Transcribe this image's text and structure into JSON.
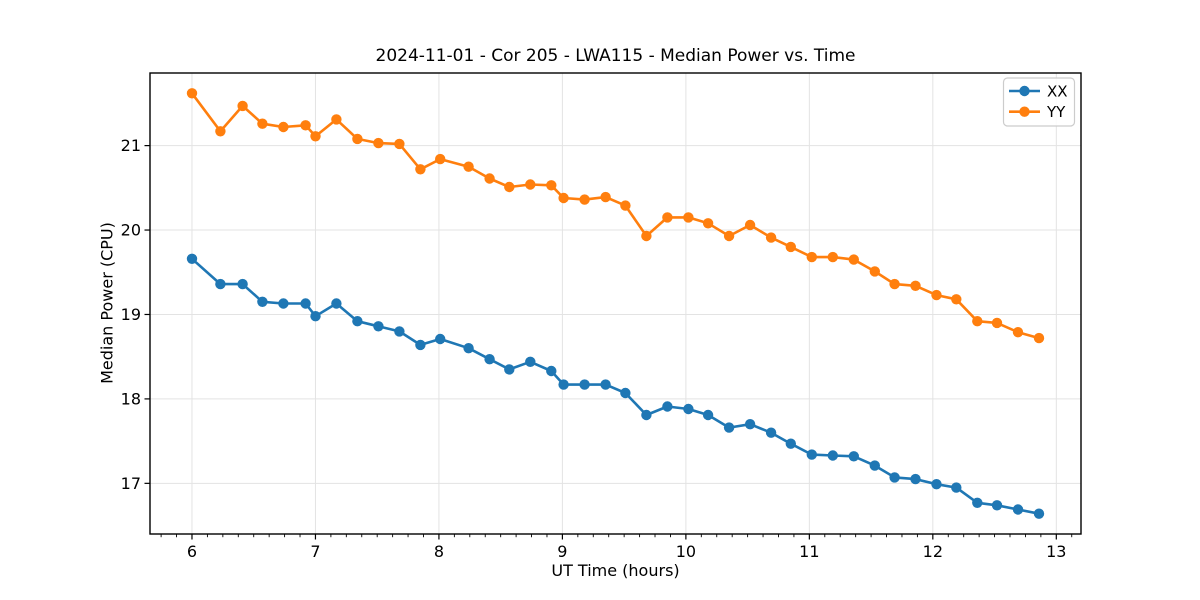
{
  "figure": {
    "title": "2024-11-01 - Cor 205 - LWA115 - Median Power vs. Time",
    "xlabel": "UT Time (hours)",
    "ylabel": "Median Power (CPU)"
  },
  "legend": {
    "position": "upper right",
    "entries": [
      {
        "label": "XX",
        "color": "#1f77b4"
      },
      {
        "label": "YY",
        "color": "#ff7f0e"
      }
    ]
  },
  "colors": {
    "series_xx": "#1f77b4",
    "series_yy": "#ff7f0e",
    "grid": "#e3e3e3",
    "spine": "#000000",
    "legend_border": "#cccccc"
  },
  "chart_data": {
    "type": "line",
    "title": "2024-11-01 - Cor 205 - LWA115 - Median Power vs. Time",
    "xlabel": "UT Time (hours)",
    "ylabel": "Median Power (CPU)",
    "xlim": [
      5.66,
      13.2
    ],
    "ylim": [
      16.4,
      21.86
    ],
    "x_ticks": [
      6,
      7,
      8,
      9,
      10,
      11,
      12,
      13
    ],
    "y_ticks": [
      17,
      18,
      19,
      20,
      21
    ],
    "x_minor_tick_step": 0.125,
    "grid": true,
    "legend_position": "upper right",
    "marker": "circle",
    "x": [
      6.0,
      6.23,
      6.41,
      6.57,
      6.74,
      6.92,
      7.0,
      7.17,
      7.34,
      7.51,
      7.68,
      7.85,
      8.01,
      8.24,
      8.41,
      8.57,
      8.74,
      8.91,
      9.01,
      9.18,
      9.35,
      9.51,
      9.68,
      9.85,
      10.02,
      10.18,
      10.35,
      10.52,
      10.69,
      10.85,
      11.02,
      11.19,
      11.36,
      11.53,
      11.69,
      11.86,
      12.03,
      12.19,
      12.36,
      12.52,
      12.69,
      12.86
    ],
    "series": [
      {
        "name": "XX",
        "color": "#1f77b4",
        "values": [
          19.66,
          19.36,
          19.36,
          19.15,
          19.13,
          19.13,
          18.98,
          19.13,
          18.92,
          18.86,
          18.8,
          18.64,
          18.71,
          18.6,
          18.47,
          18.35,
          18.44,
          18.33,
          18.17,
          18.17,
          18.17,
          18.07,
          17.81,
          17.91,
          17.88,
          17.81,
          17.66,
          17.7,
          17.6,
          17.47,
          17.34,
          17.33,
          17.32,
          17.21,
          17.07,
          17.05,
          16.99,
          16.95,
          16.77,
          16.74,
          16.69,
          16.64
        ]
      },
      {
        "name": "YY",
        "color": "#ff7f0e",
        "values": [
          21.62,
          21.17,
          21.47,
          21.26,
          21.22,
          21.24,
          21.11,
          21.31,
          21.08,
          21.03,
          21.02,
          20.72,
          20.84,
          20.75,
          20.61,
          20.51,
          20.54,
          20.53,
          20.38,
          20.36,
          20.39,
          20.29,
          19.93,
          20.15,
          20.15,
          20.08,
          19.93,
          20.06,
          19.91,
          19.8,
          19.68,
          19.68,
          19.65,
          19.51,
          19.36,
          19.34,
          19.23,
          19.18,
          18.92,
          18.9,
          18.79,
          18.72
        ]
      }
    ]
  }
}
